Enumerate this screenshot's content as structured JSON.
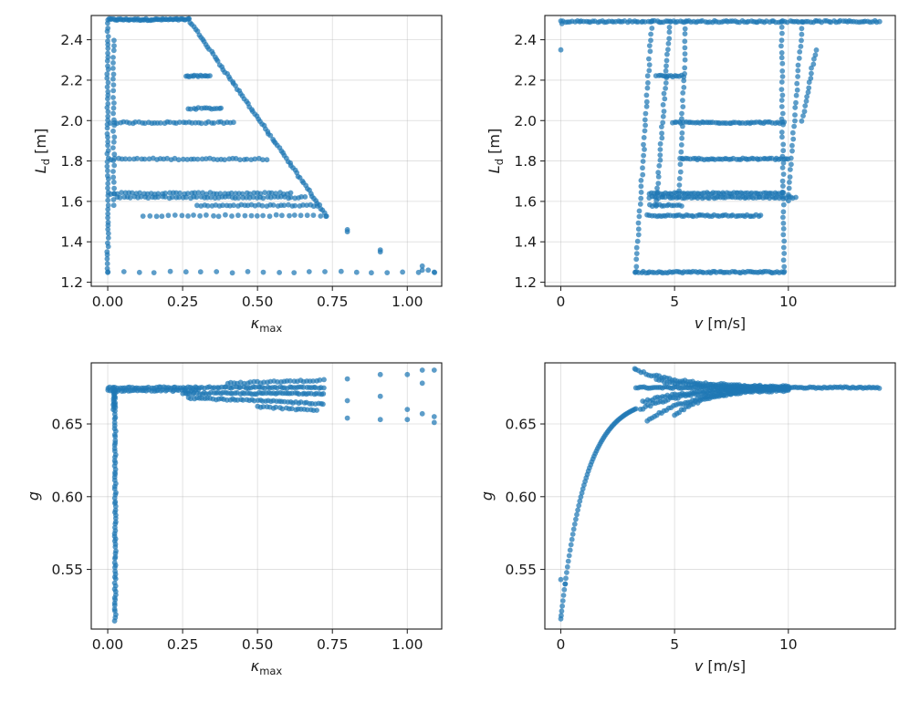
{
  "chart_data": [
    {
      "id": "kappa-vs-Ld",
      "type": "scatter",
      "xlabel": "κ",
      "xlabel_sub": "max",
      "ylabel": "L",
      "ylabel_sub": "d",
      "ylabel_unit": " [m]",
      "xlim": [
        -0.055,
        1.115
      ],
      "ylim": [
        1.18,
        2.52
      ],
      "xticks": [
        0,
        0.25,
        0.5,
        0.75,
        1.0
      ],
      "xtick_labels": [
        "0.00",
        "0.25",
        "0.50",
        "0.75",
        "1.00"
      ],
      "yticks": [
        1.2,
        1.4,
        1.6,
        1.8,
        2.0,
        2.2,
        2.4
      ],
      "ytick_labels": [
        "1.2",
        "1.4",
        "1.6",
        "1.8",
        "2.0",
        "2.2",
        "2.4"
      ],
      "grid": true,
      "points": {
        "segments": [
          {
            "x0": 0.0,
            "y0": 2.5,
            "x1": 0.27,
            "y1": 2.5,
            "n": 60
          },
          {
            "x0": 0.27,
            "y0": 2.5,
            "x1": 0.73,
            "y1": 1.53,
            "n": 80
          },
          {
            "x0": 0.26,
            "y0": 2.22,
            "x1": 0.34,
            "y1": 2.22,
            "n": 14
          },
          {
            "x0": 0.27,
            "y0": 2.06,
            "x1": 0.38,
            "y1": 2.06,
            "n": 14
          },
          {
            "x0": 0.01,
            "y0": 1.99,
            "x1": 0.42,
            "y1": 1.99,
            "n": 40
          },
          {
            "x0": 0.01,
            "y0": 1.81,
            "x1": 0.53,
            "y1": 1.81,
            "n": 42
          },
          {
            "x0": 0.01,
            "y0": 1.64,
            "x1": 0.61,
            "y1": 1.64,
            "n": 50
          },
          {
            "x0": 0.03,
            "y0": 1.62,
            "x1": 0.66,
            "y1": 1.62,
            "n": 55
          },
          {
            "x0": 0.3,
            "y0": 1.58,
            "x1": 0.7,
            "y1": 1.58,
            "n": 34
          },
          {
            "x0": 0.12,
            "y0": 1.53,
            "x1": 0.73,
            "y1": 1.53,
            "n": 30
          },
          {
            "x0": 0.0,
            "y0": 1.25,
            "x1": 1.09,
            "y1": 1.25,
            "n": 22
          },
          {
            "x0": 0.0,
            "y0": 1.25,
            "x1": 0.0,
            "y1": 2.48,
            "n": 60
          },
          {
            "x0": 0.02,
            "y0": 1.58,
            "x1": 0.02,
            "y1": 2.4,
            "n": 30
          }
        ],
        "extra": [
          [
            0.8,
            1.45
          ],
          [
            0.8,
            1.46
          ],
          [
            0.91,
            1.35
          ],
          [
            0.91,
            1.36
          ],
          [
            1.05,
            1.28
          ],
          [
            1.05,
            1.26
          ],
          [
            1.07,
            1.26
          ],
          [
            1.09,
            1.25
          ]
        ]
      }
    },
    {
      "id": "v-vs-Ld",
      "type": "scatter",
      "xlabel": "v",
      "xlabel_unit": " [m/s]",
      "ylabel": "L",
      "ylabel_sub": "d",
      "ylabel_unit": " [m]",
      "xlim": [
        -0.7,
        14.7
      ],
      "ylim": [
        1.18,
        2.52
      ],
      "xticks": [
        0,
        5,
        10
      ],
      "xtick_labels": [
        "0",
        "5",
        "10"
      ],
      "yticks": [
        1.2,
        1.4,
        1.6,
        1.8,
        2.0,
        2.2,
        2.4
      ],
      "ytick_labels": [
        "1.2",
        "1.4",
        "1.6",
        "1.8",
        "2.0",
        "2.2",
        "2.4"
      ],
      "grid": true,
      "points": {
        "segments": [
          {
            "x0": 0.0,
            "y0": 2.49,
            "x1": 14.0,
            "y1": 2.49,
            "n": 140
          },
          {
            "x0": 3.25,
            "y0": 1.25,
            "x1": 9.8,
            "y1": 1.25,
            "n": 70
          },
          {
            "x0": 3.8,
            "y0": 1.53,
            "x1": 8.8,
            "y1": 1.53,
            "n": 50
          },
          {
            "x0": 3.9,
            "y0": 1.58,
            "x1": 5.3,
            "y1": 1.58,
            "n": 14
          },
          {
            "x0": 3.9,
            "y0": 1.62,
            "x1": 10.3,
            "y1": 1.62,
            "n": 64
          },
          {
            "x0": 3.9,
            "y0": 1.64,
            "x1": 9.8,
            "y1": 1.64,
            "n": 60
          },
          {
            "x0": 5.3,
            "y0": 1.81,
            "x1": 10.0,
            "y1": 1.81,
            "n": 48
          },
          {
            "x0": 4.9,
            "y0": 1.99,
            "x1": 9.8,
            "y1": 1.99,
            "n": 50
          },
          {
            "x0": 4.2,
            "y0": 2.22,
            "x1": 5.4,
            "y1": 2.22,
            "n": 14
          },
          {
            "x0": 3.3,
            "y0": 1.25,
            "x1": 4.0,
            "y1": 2.49,
            "n": 42
          },
          {
            "x0": 4.2,
            "y0": 1.58,
            "x1": 4.8,
            "y1": 2.49,
            "n": 34
          },
          {
            "x0": 5.2,
            "y0": 1.62,
            "x1": 5.5,
            "y1": 2.49,
            "n": 28
          },
          {
            "x0": 9.8,
            "y0": 1.25,
            "x1": 9.7,
            "y1": 2.49,
            "n": 42
          },
          {
            "x0": 10.0,
            "y0": 1.6,
            "x1": 10.6,
            "y1": 2.49,
            "n": 30
          },
          {
            "x0": 10.6,
            "y0": 2.0,
            "x1": 11.2,
            "y1": 2.35,
            "n": 16
          }
        ],
        "extra": [
          [
            0.0,
            2.35
          ],
          [
            0.05,
            2.48
          ]
        ]
      }
    },
    {
      "id": "kappa-vs-g",
      "type": "scatter",
      "xlabel": "κ",
      "xlabel_sub": "max",
      "ylabel": "g",
      "xlim": [
        -0.055,
        1.115
      ],
      "ylim": [
        0.509,
        0.692
      ],
      "xticks": [
        0,
        0.25,
        0.5,
        0.75,
        1.0
      ],
      "xtick_labels": [
        "0.00",
        "0.25",
        "0.50",
        "0.75",
        "1.00"
      ],
      "yticks": [
        0.55,
        0.6,
        0.65
      ],
      "ytick_labels": [
        "0.55",
        "0.60",
        "0.65"
      ],
      "grid": true,
      "points": {
        "segments": [
          {
            "x0": 0.0,
            "y0": 0.675,
            "x1": 0.72,
            "y1": 0.675,
            "n": 90
          },
          {
            "x0": 0.0,
            "y0": 0.673,
            "x1": 0.3,
            "y1": 0.673,
            "n": 40
          },
          {
            "x0": 0.25,
            "y0": 0.671,
            "x1": 0.72,
            "y1": 0.671,
            "n": 60
          },
          {
            "x0": 0.27,
            "y0": 0.668,
            "x1": 0.72,
            "y1": 0.664,
            "n": 50
          },
          {
            "x0": 0.4,
            "y0": 0.678,
            "x1": 0.72,
            "y1": 0.68,
            "n": 30
          },
          {
            "x0": 0.5,
            "y0": 0.662,
            "x1": 0.7,
            "y1": 0.659,
            "n": 20
          },
          {
            "x0": 0.025,
            "y0": 0.515,
            "x1": 0.025,
            "y1": 0.673,
            "n": 80
          },
          {
            "x0": 0.02,
            "y0": 0.66,
            "x1": 0.02,
            "y1": 0.675,
            "n": 12
          }
        ],
        "extra": [
          [
            0.8,
            0.681
          ],
          [
            0.8,
            0.654
          ],
          [
            0.8,
            0.666
          ],
          [
            0.91,
            0.684
          ],
          [
            0.91,
            0.653
          ],
          [
            0.91,
            0.669
          ],
          [
            1.0,
            0.684
          ],
          [
            1.0,
            0.66
          ],
          [
            1.0,
            0.653
          ],
          [
            1.05,
            0.687
          ],
          [
            1.05,
            0.657
          ],
          [
            1.05,
            0.678
          ],
          [
            1.09,
            0.687
          ],
          [
            1.09,
            0.655
          ],
          [
            1.09,
            0.651
          ]
        ]
      }
    },
    {
      "id": "v-vs-g",
      "type": "scatter",
      "xlabel": "v",
      "xlabel_unit": " [m/s]",
      "ylabel": "g",
      "xlim": [
        -0.7,
        14.7
      ],
      "ylim": [
        0.509,
        0.692
      ],
      "xticks": [
        0,
        5,
        10
      ],
      "xtick_labels": [
        "0",
        "5",
        "10"
      ],
      "yticks": [
        0.55,
        0.6,
        0.65
      ],
      "ytick_labels": [
        "0.55",
        "0.60",
        "0.65"
      ],
      "grid": true,
      "points": {
        "curves": [
          {
            "kind": "rise",
            "x0": 0.0,
            "x1": 3.3,
            "ymin": 0.516,
            "ymax": 0.668,
            "tau": 1.1,
            "n": 70
          },
          {
            "kind": "flat",
            "x0": 3.3,
            "x1": 14.0,
            "y": 0.675,
            "n": 120
          },
          {
            "kind": "converge",
            "x0": 3.3,
            "x1": 10.0,
            "ystart": 0.687,
            "yend": 0.675,
            "n": 60
          },
          {
            "kind": "converge",
            "x0": 3.5,
            "x1": 10.0,
            "ystart": 0.66,
            "yend": 0.675,
            "n": 60
          },
          {
            "kind": "converge",
            "x0": 3.8,
            "x1": 10.0,
            "ystart": 0.652,
            "yend": 0.674,
            "n": 60
          },
          {
            "kind": "converge",
            "x0": 3.6,
            "x1": 10.0,
            "ystart": 0.665,
            "yend": 0.675,
            "n": 60
          },
          {
            "kind": "converge",
            "x0": 4.2,
            "x1": 10.0,
            "ystart": 0.68,
            "yend": 0.675,
            "n": 50
          },
          {
            "kind": "converge",
            "x0": 5.0,
            "x1": 10.0,
            "ystart": 0.656,
            "yend": 0.675,
            "n": 50
          }
        ],
        "extra": [
          [
            0.0,
            0.543
          ],
          [
            0.2,
            0.54
          ],
          [
            3.25,
            0.688
          ]
        ]
      }
    }
  ]
}
